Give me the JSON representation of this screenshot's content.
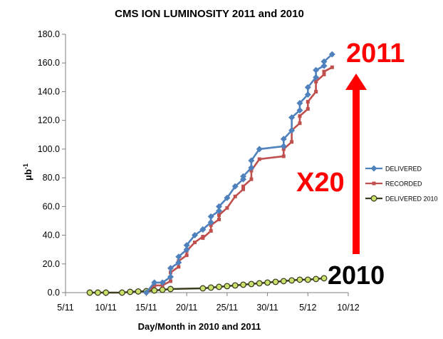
{
  "chart_data": {
    "type": "line",
    "title": "CMS ION LUMINOSITY 2011 and 2010",
    "xlabel": "Day/Month in 2010 and 2011",
    "ylabel_main": "μb",
    "ylabel_sup": "-1",
    "x_ticks": [
      "5/11",
      "10/11",
      "15/11",
      "20/11",
      "25/11",
      "30/11",
      "5/12",
      "10/12"
    ],
    "y_ticks": [
      "0.0",
      "20.0",
      "40.0",
      "60.0",
      "80.0",
      "100.0",
      "120.0",
      "140.0",
      "160.0",
      "180.0"
    ],
    "xlim": [
      "5/11",
      "10/12"
    ],
    "ylim": [
      0,
      180
    ],
    "grid": false,
    "legend_position": "right",
    "series": [
      {
        "name": "DELIVERED",
        "color": "#4f81bd",
        "marker": "diamond",
        "x": [
          "15/11",
          "16/11",
          "17/11",
          "18/11",
          "18/11",
          "19/11",
          "19/11",
          "20/11",
          "20/11",
          "21/11",
          "22/11",
          "22/11",
          "23/11",
          "23/11",
          "24/11",
          "24/11",
          "25/11",
          "26/11",
          "27/11",
          "27/11",
          "28/11",
          "28/11",
          "29/11",
          "2/12",
          "2/12",
          "3/12",
          "3/12",
          "4/12",
          "4/12",
          "5/12",
          "5/12",
          "6/12",
          "6/12",
          "7/12",
          "7/12",
          "8/12"
        ],
        "y": [
          0,
          7,
          7,
          11,
          17,
          21,
          25,
          30,
          33,
          40,
          44,
          44,
          49,
          53,
          57,
          60,
          66,
          74,
          79,
          81,
          87,
          92,
          100,
          102,
          107,
          113,
          122,
          127,
          132,
          138,
          143,
          150,
          155,
          158,
          161,
          166
        ]
      },
      {
        "name": "RECORDED",
        "color": "#c0504d",
        "marker": "square",
        "x": [
          "15/11",
          "16/11",
          "17/11",
          "18/11",
          "18/11",
          "19/11",
          "19/11",
          "20/11",
          "20/11",
          "21/11",
          "22/11",
          "22/11",
          "23/11",
          "23/11",
          "24/11",
          "24/11",
          "25/11",
          "26/11",
          "27/11",
          "27/11",
          "28/11",
          "28/11",
          "29/11",
          "2/12",
          "2/12",
          "3/12",
          "3/12",
          "4/12",
          "4/12",
          "5/12",
          "5/12",
          "6/12",
          "6/12",
          "7/12",
          "7/12",
          "8/12"
        ],
        "y": [
          0,
          5,
          5,
          8,
          14,
          18,
          22,
          26,
          29,
          35,
          39,
          38,
          43,
          47,
          51,
          54,
          59,
          67,
          72,
          74,
          79,
          85,
          93,
          95,
          100,
          105,
          113,
          118,
          123,
          128,
          133,
          140,
          147,
          152,
          154,
          157
        ]
      },
      {
        "name": "DELIVERED 2010",
        "color": "#3d3d1f",
        "marker_fill": "#c8e26b",
        "marker": "circle",
        "x": [
          "8/11",
          "9/11",
          "10/11",
          "12/11",
          "13/11",
          "14/11",
          "15/11",
          "16/11",
          "17/11",
          "18/11",
          "22/11",
          "23/11",
          "24/11",
          "25/11",
          "26/11",
          "27/11",
          "28/11",
          "29/11",
          "30/11",
          "1/12",
          "2/12",
          "3/12",
          "4/12",
          "5/12",
          "6/12",
          "7/12"
        ],
        "y": [
          0,
          0,
          0,
          0,
          0.5,
          0.8,
          1,
          1.5,
          2,
          2.5,
          3,
          3.5,
          4,
          4.5,
          5,
          5.5,
          6,
          6.5,
          7,
          7.5,
          8,
          8.5,
          9,
          9,
          9.5,
          10
        ]
      }
    ]
  },
  "annotations": {
    "label_2011": "2011",
    "label_x20": "X20",
    "label_2010": "2010",
    "arrow_color": "#ff0000"
  }
}
